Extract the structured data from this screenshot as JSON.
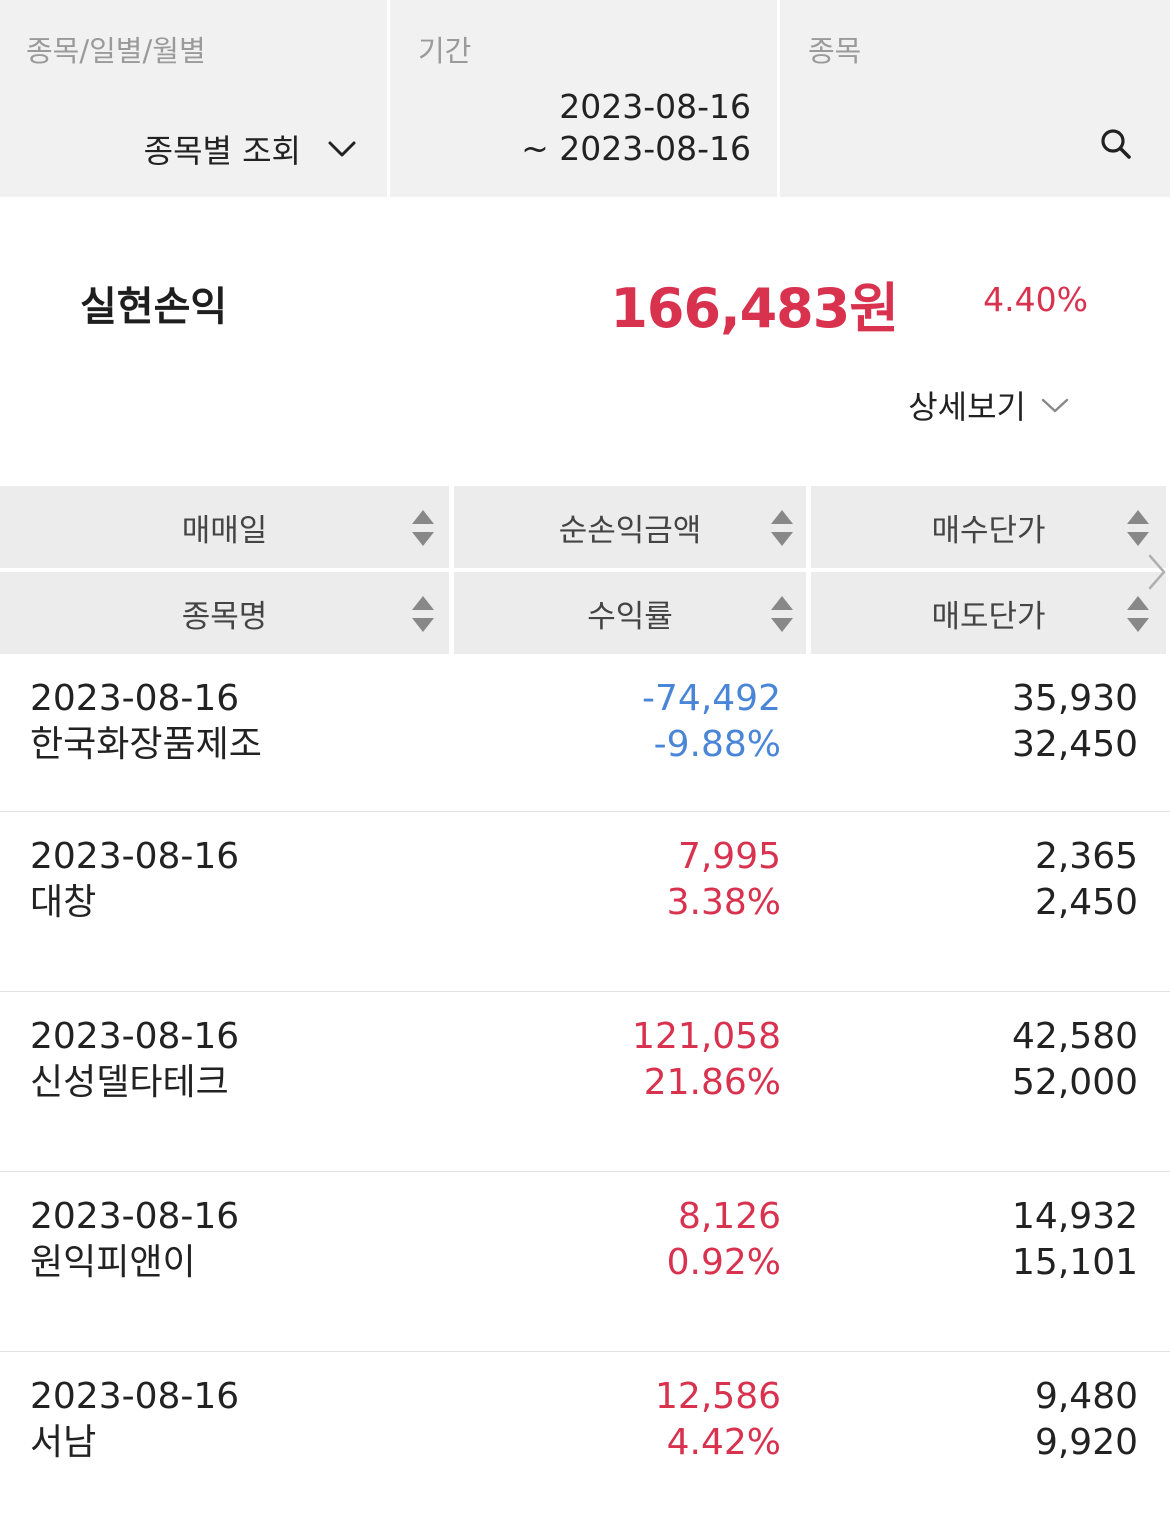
{
  "filters": {
    "view_mode": {
      "label": "종목/일별/월별",
      "value": "종목별 조회"
    },
    "period": {
      "label": "기간",
      "start": "2023-08-16",
      "end": "~ 2023-08-16"
    },
    "stock": {
      "label": "종목",
      "value": ""
    }
  },
  "summary": {
    "title": "실현손익",
    "amount": "166,483원",
    "rate": "4.40%",
    "detail_label": "상세보기"
  },
  "table": {
    "headers": {
      "col1": {
        "top": "매매일",
        "bottom": "종목명"
      },
      "col2": {
        "top": "순손익금액",
        "bottom": "수익률"
      },
      "col3": {
        "top": "매수단가",
        "bottom": "매도단가"
      }
    },
    "rows": [
      {
        "date": "2023-08-16",
        "name": "한국화장품제조",
        "profit": "-74,492",
        "rate": "-9.88%",
        "buy": "35,930",
        "sell": "32,450",
        "sign": "neg"
      },
      {
        "date": "2023-08-16",
        "name": "대창",
        "profit": "7,995",
        "rate": "3.38%",
        "buy": "2,365",
        "sell": "2,450",
        "sign": "pos"
      },
      {
        "date": "2023-08-16",
        "name": "신성델타테크",
        "profit": "121,058",
        "rate": "21.86%",
        "buy": "42,580",
        "sell": "52,000",
        "sign": "pos"
      },
      {
        "date": "2023-08-16",
        "name": "원익피앤이",
        "profit": "8,126",
        "rate": "0.92%",
        "buy": "14,932",
        "sell": "15,101",
        "sign": "pos"
      },
      {
        "date": "2023-08-16",
        "name": "서남",
        "profit": "12,586",
        "rate": "4.42%",
        "buy": "9,480",
        "sell": "9,920",
        "sign": "pos"
      }
    ]
  },
  "colors": {
    "profit": "#d8324f",
    "loss": "#4a86d8",
    "header_bg": "#ececec",
    "filter_bg": "#f1f1f1"
  },
  "icons": {
    "view_select": "chevron-down-icon",
    "search": "search-icon",
    "detail": "chevron-down-icon",
    "sort": "sort-icon",
    "scroll": "chevron-right-icon"
  }
}
